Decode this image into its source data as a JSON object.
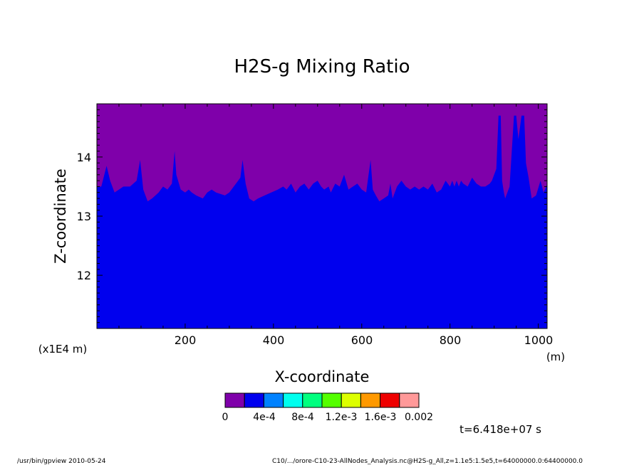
{
  "chart_data": {
    "type": "area",
    "title": "H2S-g Mixing Ratio",
    "xlabel": "X-coordinate",
    "ylabel": "Z-coordinate",
    "x_unit": "(m)",
    "y_scale_label": "(x1E4 m)",
    "xlim": [
      0,
      1020
    ],
    "ylim": [
      11.1,
      14.9
    ],
    "x_ticks": [
      200,
      400,
      600,
      800,
      1000
    ],
    "x_tick_labels": [
      "200",
      "400",
      "600",
      "800",
      "1000"
    ],
    "y_ticks": [
      12,
      13,
      14
    ],
    "y_tick_labels": [
      "12",
      "13",
      "14"
    ],
    "series": [
      {
        "level": "0",
        "color": "#7f00aa",
        "x": [
          0,
          10,
          22,
          30,
          40,
          50,
          60,
          75,
          90,
          98,
          105,
          115,
          125,
          140,
          150,
          160,
          170,
          176,
          180,
          190,
          200,
          208,
          215,
          225,
          240,
          250,
          260,
          270,
          290,
          300,
          315,
          325,
          330,
          337,
          345,
          355,
          365,
          380,
          395,
          410,
          422,
          430,
          440,
          450,
          460,
          470,
          480,
          490,
          500,
          508,
          515,
          525,
          530,
          540,
          550,
          560,
          570,
          580,
          590,
          600,
          610,
          620,
          625,
          632,
          640,
          650,
          660,
          665,
          670,
          680,
          690,
          700,
          710,
          720,
          730,
          740,
          750,
          760,
          770,
          780,
          790,
          800,
          805,
          810,
          815,
          820,
          825,
          830,
          840,
          850,
          860,
          870,
          880,
          890,
          895,
          900,
          905,
          910,
          915,
          918,
          922,
          925,
          935,
          945,
          950,
          955,
          962,
          968,
          972,
          978,
          985,
          995,
          1005,
          1012,
          1018,
          1020
        ],
        "top_of_blue": [
          13.5,
          13.5,
          13.85,
          13.6,
          13.4,
          13.45,
          13.5,
          13.5,
          13.6,
          13.95,
          13.45,
          13.25,
          13.3,
          13.4,
          13.5,
          13.45,
          13.55,
          14.1,
          13.7,
          13.45,
          13.4,
          13.45,
          13.4,
          13.35,
          13.3,
          13.4,
          13.45,
          13.4,
          13.35,
          13.4,
          13.55,
          13.65,
          13.95,
          13.55,
          13.3,
          13.25,
          13.3,
          13.35,
          13.4,
          13.45,
          13.5,
          13.45,
          13.55,
          13.4,
          13.5,
          13.55,
          13.45,
          13.55,
          13.6,
          13.5,
          13.45,
          13.5,
          13.4,
          13.55,
          13.5,
          13.7,
          13.45,
          13.5,
          13.55,
          13.45,
          13.4,
          13.95,
          13.45,
          13.35,
          13.25,
          13.3,
          13.35,
          13.55,
          13.3,
          13.5,
          13.6,
          13.5,
          13.45,
          13.5,
          13.45,
          13.5,
          13.45,
          13.55,
          13.4,
          13.45,
          13.6,
          13.5,
          13.6,
          13.5,
          13.6,
          13.5,
          13.6,
          13.55,
          13.5,
          13.65,
          13.55,
          13.5,
          13.5,
          13.55,
          13.6,
          13.7,
          13.8,
          14.7,
          14.7,
          13.6,
          13.4,
          13.3,
          13.5,
          14.7,
          14.7,
          14.3,
          14.7,
          14.7,
          13.9,
          13.65,
          13.3,
          13.35,
          13.6,
          13.4,
          13.5,
          13.55
        ]
      },
      {
        "level": "4e-4",
        "color": "#0000ee"
      }
    ],
    "colorbar": {
      "colors": [
        "#7f00aa",
        "#0000ee",
        "#0082ff",
        "#00ffee",
        "#00ff7f",
        "#54ff00",
        "#ddff00",
        "#ff9900",
        "#ee0000",
        "#ff9999"
      ],
      "labels": [
        "0",
        "4e-4",
        "8e-4",
        "1.2e-3",
        "1.6e-3",
        "0.002"
      ]
    },
    "time_label": "t=6.418e+07 s"
  },
  "footer": {
    "left": "/usr/bin/gpview  2010-05-24",
    "right": "C10/.../orore-C10-23-AllNodes_Analysis.nc@H2S-g_All,z=1.1e5:1.5e5,t=64000000.0:64400000.0"
  }
}
